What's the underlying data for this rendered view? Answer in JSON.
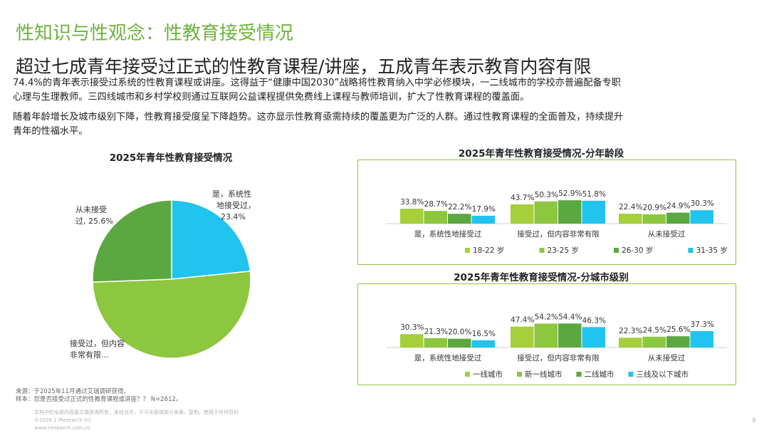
{
  "header": {
    "section_title": "性知识与性观念：性教育接受情况",
    "headline": "超过七成青年接受过正式的性教育课程/讲座，五成青年表示教育内容有限"
  },
  "body": {
    "lines": [
      "74.4%的青年表示接受过系统的性教育课程或讲座。这得益于“健康中国2030”战略将性教育纳入中学必修模块，一二线城市的学校亦普遍配备专职",
      "心理与生理教师。三四线城市和乡村学校则通过互联网公益课程提供免费线上课程与教师培训，扩大了性教育课程的覆盖面。",
      "随着年龄增长及城市级别下降，性教育接受度呈下降趋势。这亦显示性教育亟需持续的覆盖更为广泛的人群。通过性教育课程的全面普及，持续提升",
      "青年的性福水平。"
    ]
  },
  "footer": {
    "source": "来源：于2025年11月通过艾瑞调研获得。",
    "sample": "样本：您是否接受过正式的性教育课程或讲座？？ N=2612。",
    "copyright1": "文档中的全部内容属艾瑞咨询所有，未经允许，不可全部或部分发表、复制、使用于任何目的",
    "copyright2": "©2026.1 iResearch Inc",
    "site": "www.iresearch.com.cn",
    "page": "9"
  },
  "colors": {
    "accent": "#6db33f",
    "border": "#8dc63f",
    "series": [
      "#a5cf3b",
      "#8dc63f",
      "#5aa83f",
      "#20c4ef"
    ],
    "pie": {
      "接受过，但内容非常有限": "#8dc63f",
      "从未接受过": "#5aa83f",
      "是，系统性地接受过": "#20c4ef"
    }
  },
  "chart_data": [
    {
      "type": "pie",
      "title": "2025年青年性教育接受情况",
      "slices": [
        {
          "label": "是，系统性地接受过",
          "value": 23.4,
          "label_lines": [
            "是，系统性",
            "地接受过，",
            "23.4%"
          ]
        },
        {
          "label": "接受过，但内容非常有限",
          "value": 51.0,
          "label_lines": [
            "接受过，但内容",
            "非常有限…"
          ]
        },
        {
          "label": "从未接受过",
          "value": 25.6,
          "label_lines": [
            "从未接受",
            "过, 25.6%"
          ]
        }
      ]
    },
    {
      "type": "bar",
      "title": "2025年青年性教育接受情况-分年龄段",
      "categories": [
        "是，系统性地接受过",
        "接受过，但内容非常有限",
        "从未接受过"
      ],
      "series": [
        {
          "name": "18-22 岁",
          "values": [
            33.8,
            43.7,
            22.4
          ]
        },
        {
          "name": "23-25 岁",
          "values": [
            28.7,
            50.3,
            20.9
          ]
        },
        {
          "name": "26-30 岁",
          "values": [
            22.2,
            52.9,
            24.9
          ]
        },
        {
          "name": "31-35 岁",
          "values": [
            17.9,
            51.8,
            30.3
          ]
        }
      ],
      "ylim": [
        0,
        100
      ],
      "grid": false,
      "legend": "bottom"
    },
    {
      "type": "bar",
      "title": "2025年青年性教育接受情况-分城市级别",
      "categories": [
        "是，系统性地接受过",
        "接受过，但内容非常有限",
        "从未接受过"
      ],
      "series": [
        {
          "name": "一线城市",
          "values": [
            30.3,
            47.4,
            22.3
          ]
        },
        {
          "name": "新一线城市",
          "values": [
            21.3,
            54.2,
            24.5
          ]
        },
        {
          "name": "二线城市",
          "values": [
            20.0,
            54.4,
            25.6
          ]
        },
        {
          "name": "三线及以下城市",
          "values": [
            16.5,
            46.3,
            37.3
          ]
        }
      ],
      "ylim": [
        0,
        100
      ],
      "grid": false,
      "legend": "bottom"
    }
  ]
}
